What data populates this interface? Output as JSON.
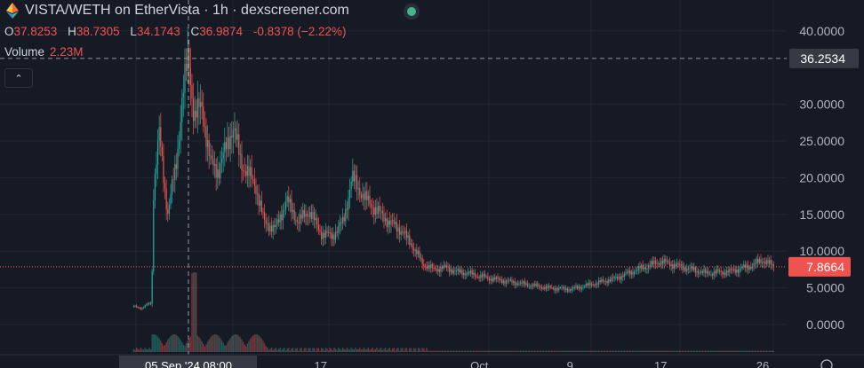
{
  "header": {
    "title": "VISTA/WETH on EtherVista · 1h · dexscreener.com",
    "logo_icon": "ethereum-logo-icon",
    "status_icon": "connection-status-dot-icon"
  },
  "legend": {
    "o_label": "O",
    "o_value": "37.8253",
    "h_label": "H",
    "h_value": "38.7305",
    "l_label": "L",
    "l_value": "34.1743",
    "c_label": "C",
    "c_value": "36.9874",
    "change": "-0.8378 (−2.22%)",
    "volume_label": "Volume",
    "volume_value": "2.23M",
    "collapse_icon": "chevron-up-icon"
  },
  "colors": {
    "up": "#26a69a",
    "down": "#ef5350",
    "background": "#161a25",
    "grid": "#222632",
    "text": "#d1d4dc"
  },
  "chart_data": {
    "type": "candlestick",
    "interval": "1h",
    "ylim": [
      -1.5,
      42
    ],
    "y_ticks": [
      "40.0000",
      "30.0000",
      "25.0000",
      "20.0000",
      "15.0000",
      "10.0000",
      "5.0000",
      "0.0000"
    ],
    "y_tick_values": [
      40,
      30,
      25,
      20,
      15,
      10,
      5,
      0
    ],
    "x_ticks": [
      {
        "label": "05 Sep '24  08:00",
        "date": "2024-09-05T08:00",
        "highlight": true
      },
      {
        "label": "17",
        "date": "2024-09-17T00:00"
      },
      {
        "label": "Oct",
        "date": "2024-10-01T00:00"
      },
      {
        "label": "9",
        "date": "2024-10-09T00:00"
      },
      {
        "label": "17",
        "date": "2024-10-17T00:00"
      },
      {
        "label": "26",
        "date": "2024-10-26T00:00"
      }
    ],
    "crosshair": {
      "date": "2024-09-05T08:00",
      "price": 36.2534,
      "price_label": "36.2534"
    },
    "last_price": {
      "value": 7.8664,
      "label": "7.8664"
    },
    "grid": true,
    "approx_close_path": [
      [
        "2024-08-31T12:00",
        2.5
      ],
      [
        "2024-09-01T06:00",
        2.2
      ],
      [
        "2024-09-01T18:00",
        2.8
      ],
      [
        "2024-09-02T02:00",
        3.0
      ],
      [
        "2024-09-02T06:00",
        18
      ],
      [
        "2024-09-02T18:00",
        26
      ],
      [
        "2024-09-03T12:00",
        15
      ],
      [
        "2024-09-04T06:00",
        22
      ],
      [
        "2024-09-04T18:00",
        30
      ],
      [
        "2024-09-05T08:00",
        37
      ],
      [
        "2024-09-05T20:00",
        28
      ],
      [
        "2024-09-06T12:00",
        30
      ],
      [
        "2024-09-07T06:00",
        22
      ],
      [
        "2024-09-08T00:00",
        21
      ],
      [
        "2024-09-09T06:00",
        27
      ],
      [
        "2024-09-10T00:00",
        22
      ],
      [
        "2024-09-11T06:00",
        19
      ],
      [
        "2024-09-12T00:00",
        14
      ],
      [
        "2024-09-13T00:00",
        13
      ],
      [
        "2024-09-14T00:00",
        17
      ],
      [
        "2024-09-15T00:00",
        14
      ],
      [
        "2024-09-16T00:00",
        15.5
      ],
      [
        "2024-09-17T00:00",
        12.5
      ],
      [
        "2024-09-18T00:00",
        12
      ],
      [
        "2024-09-19T00:00",
        14
      ],
      [
        "2024-09-19T18:00",
        20
      ],
      [
        "2024-09-21T00:00",
        17
      ],
      [
        "2024-09-22T00:00",
        15.5
      ],
      [
        "2024-09-23T00:00",
        14
      ],
      [
        "2024-09-24T00:00",
        13
      ],
      [
        "2024-09-25T00:00",
        11
      ],
      [
        "2024-09-26T00:00",
        8.3
      ],
      [
        "2024-09-27T00:00",
        7.5
      ],
      [
        "2024-09-28T00:00",
        7.8
      ],
      [
        "2024-09-29T00:00",
        7.2
      ],
      [
        "2024-09-30T00:00",
        7
      ],
      [
        "2024-10-01T00:00",
        6.6
      ],
      [
        "2024-10-03T00:00",
        6.0
      ],
      [
        "2024-10-05T00:00",
        5.5
      ],
      [
        "2024-10-07T00:00",
        5.0
      ],
      [
        "2024-10-09T00:00",
        4.8
      ],
      [
        "2024-10-11T00:00",
        5.5
      ],
      [
        "2024-10-13T00:00",
        6.3
      ],
      [
        "2024-10-15T00:00",
        7.5
      ],
      [
        "2024-10-17T00:00",
        8.6
      ],
      [
        "2024-10-19T00:00",
        7.8
      ],
      [
        "2024-10-21T00:00",
        7.0
      ],
      [
        "2024-10-23T00:00",
        7.2
      ],
      [
        "2024-10-25T00:00",
        8.0
      ],
      [
        "2024-10-26T00:00",
        8.8
      ],
      [
        "2024-10-27T00:00",
        7.87
      ]
    ]
  }
}
